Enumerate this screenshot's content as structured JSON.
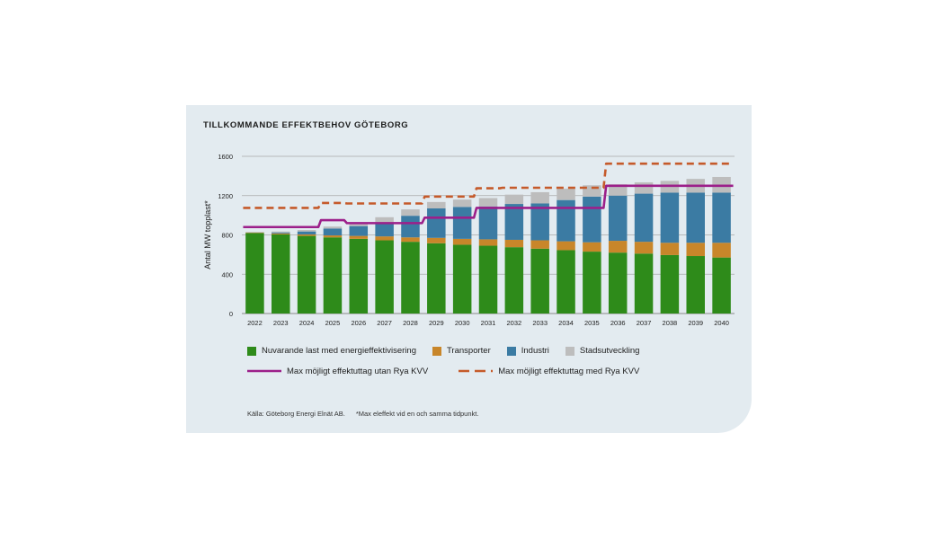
{
  "title": "TILLKOMMANDE EFFEKTBEHOV GÖTEBORG",
  "source": "Källa: Göteborg Energi Elnät AB.",
  "footnote": "*Max eleffekt vid en och samma tidpunkt.",
  "colors": {
    "base": "#2e8b1a",
    "transport": "#c8862a",
    "industry": "#3b7ba3",
    "city": "#bdbdbd",
    "max_without": "#9c1f8a",
    "max_with": "#c55a2a"
  },
  "chart_data": {
    "type": "bar",
    "stacked": true,
    "title": "TILLKOMMANDE EFFEKTBEHOV GÖTEBORG",
    "xlabel": "",
    "ylabel": "Antal MW topplast*",
    "ylim": [
      0,
      1600
    ],
    "yticks": [
      0,
      400,
      800,
      1200,
      1600
    ],
    "grid": true,
    "categories": [
      "2022",
      "2023",
      "2024",
      "2025",
      "2026",
      "2027",
      "2028",
      "2029",
      "2030",
      "2031",
      "2032",
      "2033",
      "2034",
      "2035",
      "2036",
      "2037",
      "2038",
      "2039",
      "2040"
    ],
    "series": [
      {
        "name": "Nuvarande last med energieffektivisering",
        "kind": "bar",
        "color": "#2e8b1a",
        "values": [
          820,
          805,
          790,
          775,
          760,
          745,
          730,
          715,
          700,
          690,
          675,
          660,
          645,
          630,
          620,
          610,
          595,
          585,
          570
        ]
      },
      {
        "name": "Transporter",
        "kind": "bar",
        "color": "#c8862a",
        "values": [
          5,
          10,
          15,
          20,
          30,
          40,
          45,
          55,
          60,
          65,
          75,
          85,
          90,
          95,
          120,
          120,
          125,
          135,
          150
        ]
      },
      {
        "name": "Industri",
        "kind": "bar",
        "color": "#3b7ba3",
        "values": [
          0,
          10,
          30,
          70,
          100,
          130,
          220,
          300,
          325,
          335,
          365,
          375,
          420,
          465,
          460,
          490,
          510,
          510,
          510
        ]
      },
      {
        "name": "Stadsutveckling",
        "kind": "bar",
        "color": "#bdbdbd",
        "values": [
          5,
          10,
          15,
          20,
          25,
          65,
          65,
          65,
          75,
          85,
          95,
          115,
          115,
          115,
          115,
          115,
          120,
          140,
          160
        ]
      },
      {
        "name": "Max möjligt effektuttag utan Rya KVV",
        "kind": "line",
        "style": "solid",
        "color": "#9c1f8a",
        "values": [
          880,
          880,
          880,
          950,
          920,
          920,
          920,
          975,
          975,
          1075,
          1075,
          1075,
          1075,
          1075,
          1300,
          1300,
          1300,
          1300,
          1300
        ]
      },
      {
        "name": "Max möjligt effektuttag med Rya KVV",
        "kind": "line",
        "style": "dashed",
        "color": "#c55a2a",
        "values": [
          1075,
          1075,
          1075,
          1125,
          1120,
          1120,
          1120,
          1190,
          1190,
          1275,
          1280,
          1280,
          1280,
          1280,
          1525,
          1525,
          1525,
          1525,
          1525
        ]
      }
    ]
  }
}
